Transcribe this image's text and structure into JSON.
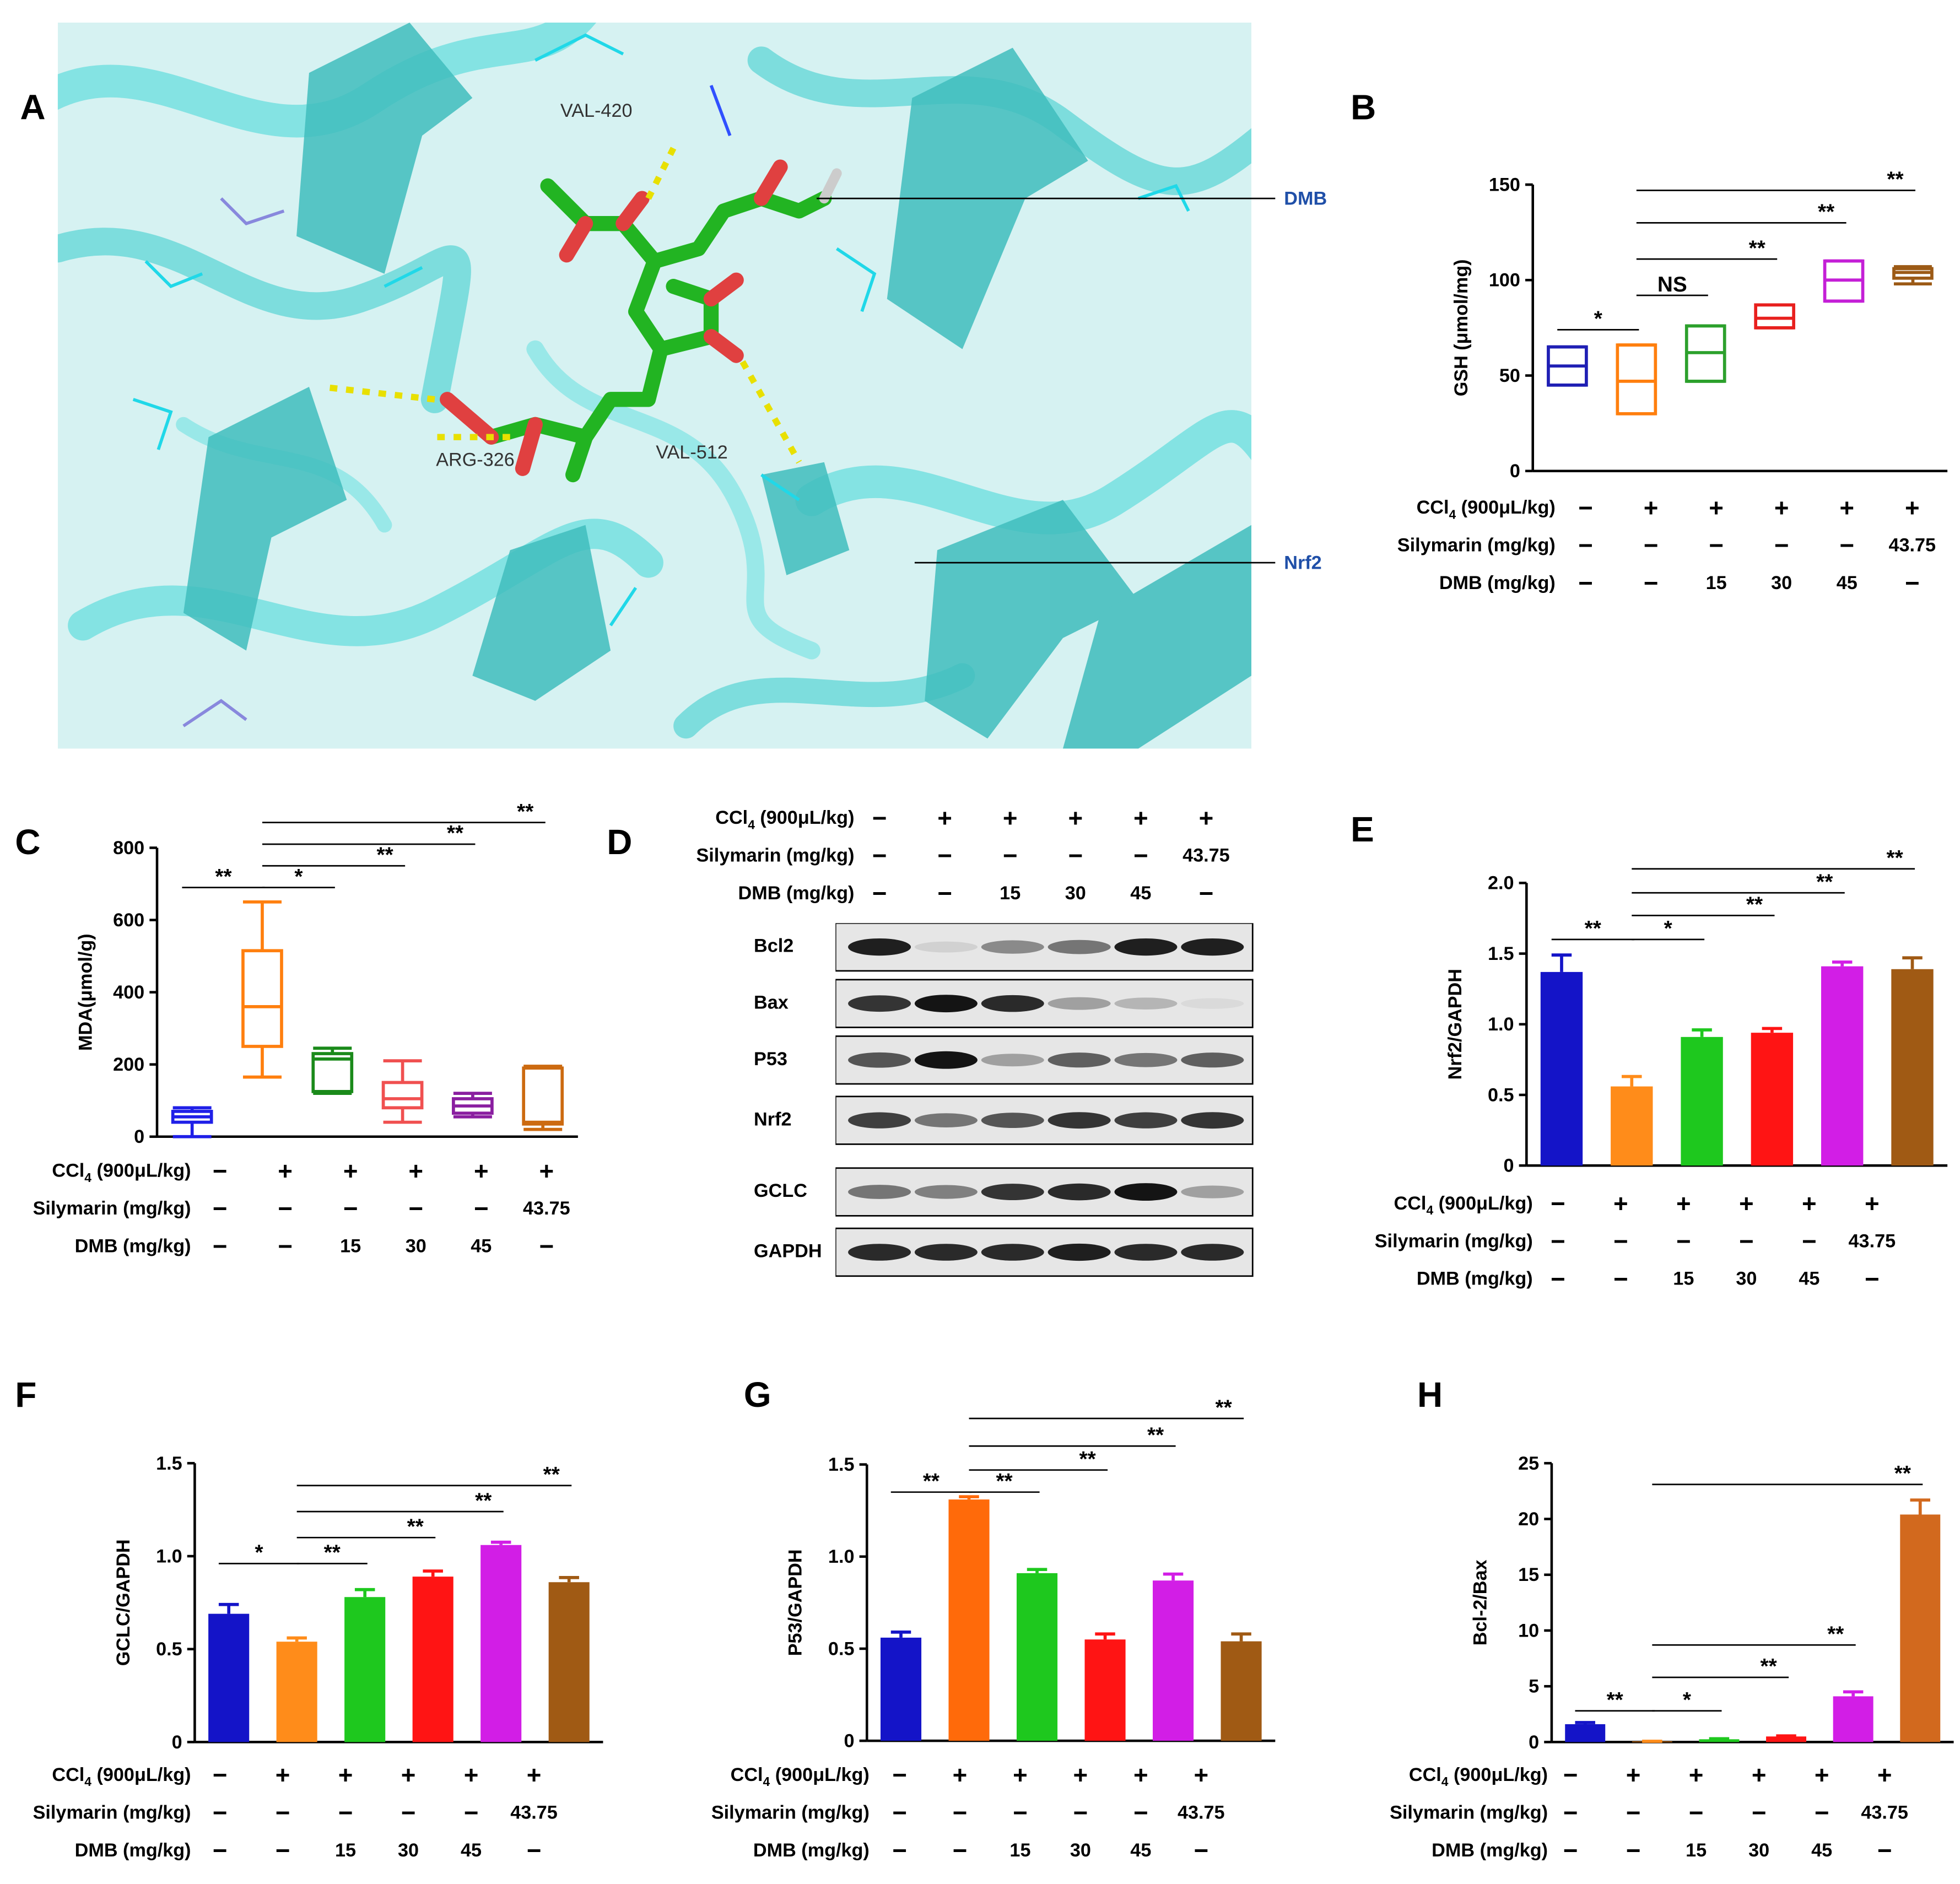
{
  "panel_letters": {
    "a": "A",
    "b": "B",
    "c": "C",
    "d": "D",
    "e": "E",
    "f": "F",
    "g": "G",
    "h": "H"
  },
  "docking": {
    "residues": [
      "VAL-420",
      "ARG-326",
      "VAL-512"
    ],
    "ligand_label": "DMB",
    "protein_label": "Nrf2",
    "colors": {
      "protein": "#4fd3d3",
      "ligand": "#22b422",
      "oxygen": "#e04040",
      "hbond": "#e8e000",
      "label": "#1f4fa8"
    }
  },
  "treatments": {
    "ccl4": {
      "label": "CCl",
      "sub": "4",
      "unit": " (900μL/kg)",
      "values": [
        "−",
        "+",
        "+",
        "+",
        "+",
        "+"
      ]
    },
    "silymarin": {
      "label": "Silymarin (mg/kg)",
      "values": [
        "−",
        "−",
        "−",
        "−",
        "−",
        "43.75"
      ]
    },
    "dmb": {
      "label": "DMB (mg/kg)",
      "values": [
        "−",
        "−",
        "15",
        "30",
        "45",
        "−"
      ]
    }
  },
  "western_blot": {
    "bands": [
      "Bcl2",
      "Bax",
      "P53",
      "Nrf2",
      "GCLC",
      "GAPDH"
    ],
    "intensity": [
      [
        0.95,
        0.12,
        0.45,
        0.55,
        0.95,
        0.95
      ],
      [
        0.85,
        1.0,
        0.9,
        0.35,
        0.25,
        0.08
      ],
      [
        0.7,
        1.0,
        0.35,
        0.65,
        0.55,
        0.65
      ],
      [
        0.8,
        0.55,
        0.7,
        0.85,
        0.8,
        0.85
      ],
      [
        0.55,
        0.5,
        0.85,
        0.9,
        1.0,
        0.35
      ],
      [
        0.9,
        0.9,
        0.9,
        0.95,
        0.9,
        0.9
      ]
    ]
  },
  "chart_data": [
    {
      "id": "B",
      "type": "box",
      "ylabel": "GSH (μmol/mg)",
      "ylim": [
        0,
        150
      ],
      "yticks": [
        0,
        50,
        100,
        150
      ],
      "colors": [
        "#1f1fb4",
        "#ff7f0e",
        "#2ca02c",
        "#e8201e",
        "#c41fd6",
        "#9c5a16"
      ],
      "boxes": [
        {
          "min": 45,
          "q1": 45,
          "median": 55,
          "q3": 65,
          "max": 65
        },
        {
          "min": 30,
          "q1": 30,
          "median": 47,
          "q3": 66,
          "max": 66
        },
        {
          "min": 47,
          "q1": 47,
          "median": 62,
          "q3": 76,
          "max": 76
        },
        {
          "min": 75,
          "q1": 75,
          "median": 80,
          "q3": 87,
          "max": 87
        },
        {
          "min": 89,
          "q1": 89,
          "median": 100,
          "q3": 110,
          "max": 110
        },
        {
          "min": 98,
          "q1": 101,
          "median": 104,
          "q3": 106,
          "max": 107
        }
      ],
      "significance": [
        {
          "from": 0,
          "to": 1,
          "label": "*",
          "y": 74
        },
        {
          "from": 1,
          "to": 2,
          "label": "NS",
          "y": 92
        },
        {
          "from": 1,
          "to": 3,
          "label": "**",
          "y": 111
        },
        {
          "from": 1,
          "to": 4,
          "label": "**",
          "y": 130
        },
        {
          "from": 1,
          "to": 5,
          "label": "**",
          "y": 147
        }
      ]
    },
    {
      "id": "C",
      "type": "box",
      "ylabel": "MDA(μmol/g)",
      "ylim": [
        0,
        800
      ],
      "yticks": [
        0,
        200,
        400,
        600,
        800
      ],
      "colors": [
        "#1f1fe8",
        "#ff7f0e",
        "#1a8a1a",
        "#f05050",
        "#8a1ea0",
        "#cc6a10"
      ],
      "boxes": [
        {
          "min": 0,
          "q1": 40,
          "median": 55,
          "q3": 70,
          "max": 80
        },
        {
          "min": 165,
          "q1": 250,
          "median": 360,
          "q3": 515,
          "max": 650
        },
        {
          "min": 120,
          "q1": 125,
          "median": 215,
          "q3": 230,
          "max": 245
        },
        {
          "min": 40,
          "q1": 80,
          "median": 105,
          "q3": 150,
          "max": 210
        },
        {
          "min": 55,
          "q1": 65,
          "median": 85,
          "q3": 105,
          "max": 120
        },
        {
          "min": 20,
          "q1": 35,
          "median": 40,
          "q3": 190,
          "max": 195
        }
      ],
      "significance": [
        {
          "from": 0,
          "to": 1,
          "label": "**",
          "y": 690
        },
        {
          "from": 1,
          "to": 2,
          "label": "*",
          "y": 690
        },
        {
          "from": 1,
          "to": 3,
          "label": "**",
          "y": 750
        },
        {
          "from": 1,
          "to": 4,
          "label": "**",
          "y": 810
        },
        {
          "from": 1,
          "to": 5,
          "label": "**",
          "y": 870
        }
      ]
    },
    {
      "id": "E",
      "type": "bar",
      "ylabel": "Nrf2/GAPDH",
      "ylim": [
        0,
        2.0
      ],
      "yticks": [
        0,
        0.5,
        1.0,
        1.5,
        2.0
      ],
      "colors": [
        "#1414c8",
        "#ff8c1a",
        "#1ec81e",
        "#ff1414",
        "#d21ee6",
        "#a05a14"
      ],
      "values": [
        1.37,
        0.56,
        0.91,
        0.94,
        1.41,
        1.39
      ],
      "errors": [
        0.12,
        0.07,
        0.05,
        0.03,
        0.03,
        0.08
      ],
      "significance": [
        {
          "from": 0,
          "to": 1,
          "label": "**",
          "y": 1.6
        },
        {
          "from": 1,
          "to": 2,
          "label": "*",
          "y": 1.6
        },
        {
          "from": 1,
          "to": 3,
          "label": "**",
          "y": 1.77
        },
        {
          "from": 1,
          "to": 4,
          "label": "**",
          "y": 1.93
        },
        {
          "from": 1,
          "to": 5,
          "label": "**",
          "y": 2.1
        }
      ]
    },
    {
      "id": "F",
      "type": "bar",
      "ylabel": "GCLC/GAPDH",
      "ylim": [
        0,
        1.5
      ],
      "yticks": [
        0,
        0.5,
        1.0,
        1.5
      ],
      "colors": [
        "#1414c8",
        "#ff8c1a",
        "#1ec81e",
        "#ff1414",
        "#d21ee6",
        "#a05a14"
      ],
      "values": [
        0.69,
        0.54,
        0.78,
        0.89,
        1.06,
        0.86
      ],
      "errors": [
        0.05,
        0.02,
        0.04,
        0.03,
        0.015,
        0.025
      ],
      "significance": [
        {
          "from": 0,
          "to": 1,
          "label": "*",
          "y": 0.96
        },
        {
          "from": 1,
          "to": 2,
          "label": "**",
          "y": 0.96
        },
        {
          "from": 1,
          "to": 3,
          "label": "**",
          "y": 1.1
        },
        {
          "from": 1,
          "to": 4,
          "label": "**",
          "y": 1.24
        },
        {
          "from": 1,
          "to": 5,
          "label": "**",
          "y": 1.38
        }
      ]
    },
    {
      "id": "G",
      "type": "bar",
      "ylabel": "P53/GAPDH",
      "ylim": [
        0,
        1.5
      ],
      "yticks": [
        0,
        0.5,
        1.0,
        1.5
      ],
      "colors": [
        "#1414c8",
        "#ff6a0a",
        "#1ec81e",
        "#ff1414",
        "#d21ee6",
        "#a05a14"
      ],
      "values": [
        0.56,
        1.31,
        0.91,
        0.55,
        0.87,
        0.54
      ],
      "errors": [
        0.03,
        0.015,
        0.02,
        0.03,
        0.035,
        0.04
      ],
      "significance": [
        {
          "from": 0,
          "to": 1,
          "label": "**",
          "y": 1.35
        },
        {
          "from": 1,
          "to": 2,
          "label": "**",
          "y": 1.35
        },
        {
          "from": 1,
          "to": 3,
          "label": "**",
          "y": 1.47
        },
        {
          "from": 1,
          "to": 4,
          "label": "**",
          "y": 1.6
        },
        {
          "from": 1,
          "to": 5,
          "label": "**",
          "y": 1.75
        }
      ]
    },
    {
      "id": "H",
      "type": "bar",
      "ylabel": "Bcl-2/Bax",
      "ylim": [
        0,
        25
      ],
      "yticks": [
        0,
        5,
        10,
        15,
        20,
        25
      ],
      "colors": [
        "#1414c8",
        "#ff8c1a",
        "#1ec81e",
        "#ff1414",
        "#d21ee6",
        "#d2691e"
      ],
      "values": [
        1.6,
        0.05,
        0.25,
        0.5,
        4.1,
        20.4
      ],
      "errors": [
        0.15,
        0.02,
        0.05,
        0.05,
        0.4,
        1.3
      ],
      "significance": [
        {
          "from": 0,
          "to": 1,
          "label": "**",
          "y": 2.8
        },
        {
          "from": 1,
          "to": 2,
          "label": "*",
          "y": 2.8
        },
        {
          "from": 1,
          "to": 3,
          "label": "**",
          "y": 5.8
        },
        {
          "from": 1,
          "to": 4,
          "label": "**",
          "y": 8.7
        },
        {
          "from": 1,
          "to": 5,
          "label": "**",
          "y": 23.1
        }
      ]
    }
  ]
}
